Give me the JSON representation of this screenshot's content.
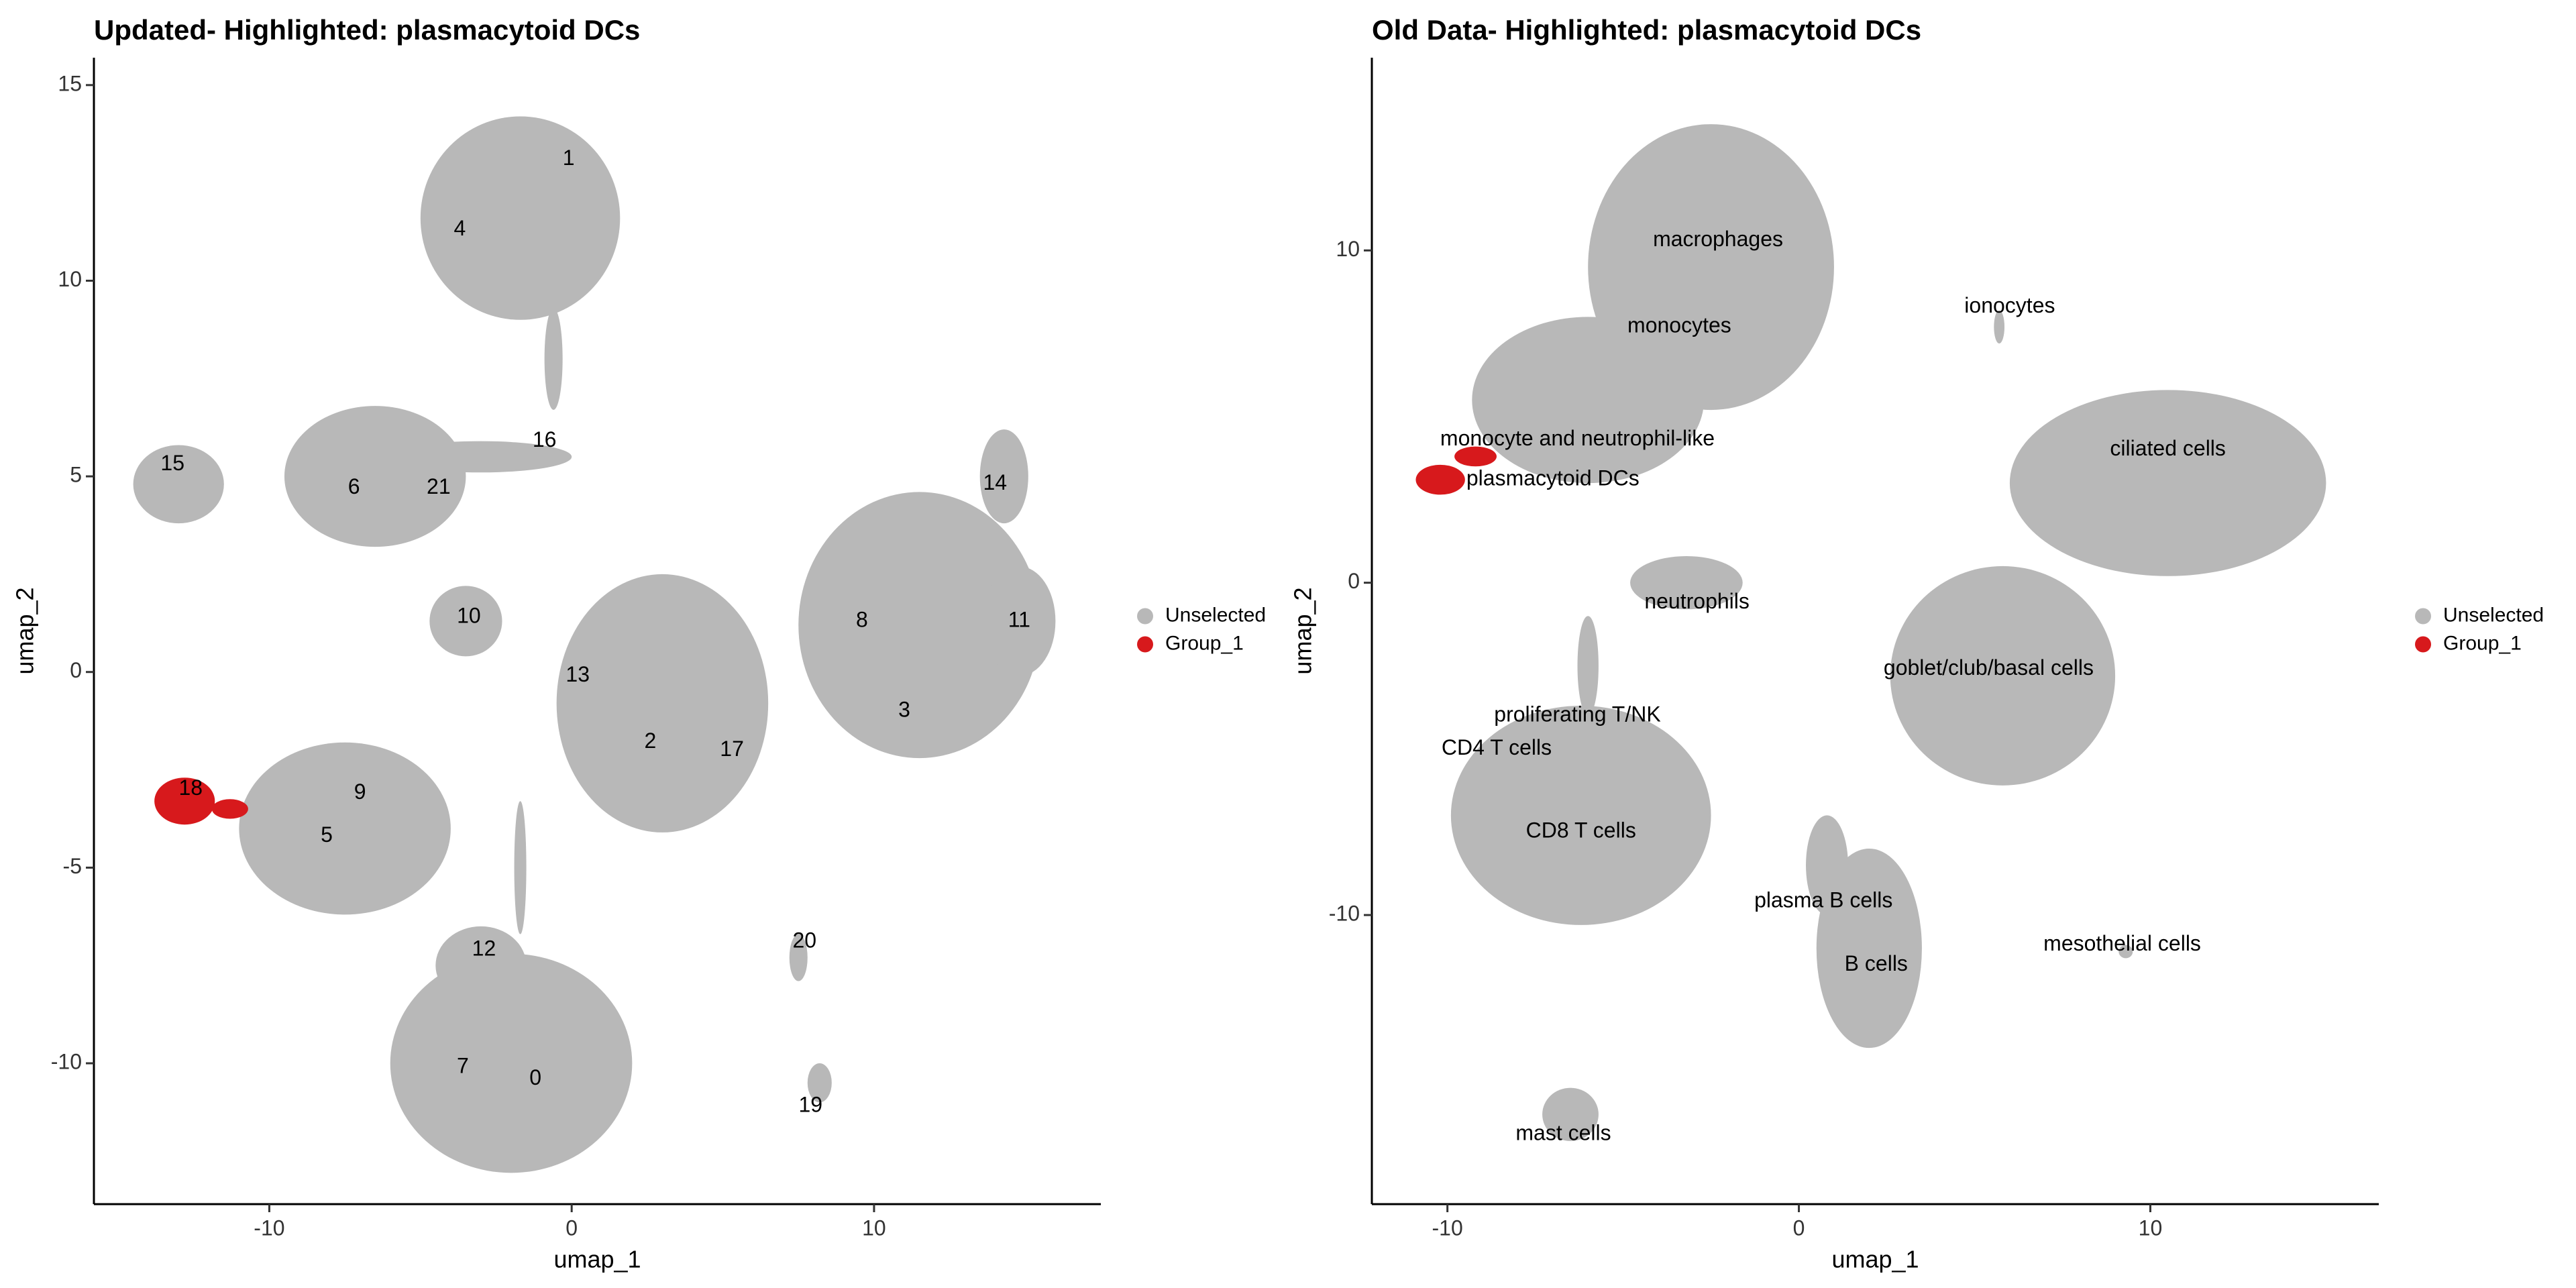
{
  "chart_data": [
    {
      "type": "scatter",
      "title": "Updated- Highlighted: plasmacytoid DCs",
      "xlabel": "umap_1",
      "ylabel": "umap_2",
      "xlim": [
        -15.8,
        17.5
      ],
      "ylim": [
        -13.6,
        15.7
      ],
      "xticks": [
        -10,
        0,
        10
      ],
      "yticks": [
        -10,
        -5,
        0,
        5,
        10,
        15
      ],
      "legend": "right",
      "series": [
        {
          "name": "Unselected",
          "color": "#b8b8b8",
          "regions": {
            "x": [
              -1.7,
              -0.6,
              -6.5,
              -3.0,
              -13.0,
              14.3,
              11.5,
              14.8,
              -3.5,
              3.0,
              -7.5,
              -2.0,
              -3.0,
              -1.7,
              7.5,
              8.2
            ],
            "y": [
              11.6,
              8.0,
              5.0,
              5.5,
              4.8,
              5.0,
              1.2,
              1.3,
              1.3,
              -0.8,
              -4.0,
              -10.0,
              -7.5,
              -5.0,
              -7.3,
              -10.5
            ],
            "rx": [
              3.3,
              0.3,
              3.0,
              3.0,
              1.5,
              0.8,
              4.0,
              1.2,
              1.2,
              3.5,
              3.5,
              4.0,
              1.5,
              0.2,
              0.3,
              0.4
            ],
            "ry": [
              2.6,
              1.3,
              1.8,
              0.4,
              1.0,
              1.2,
              3.4,
              1.4,
              0.9,
              3.3,
              2.2,
              2.8,
              1.0,
              1.7,
              0.6,
              0.5
            ]
          }
        },
        {
          "name": "Group_1",
          "color": "#d7191c",
          "regions": {
            "x": [
              -12.8,
              -11.3
            ],
            "y": [
              -3.3,
              -3.5
            ],
            "rx": [
              1.0,
              0.6
            ],
            "ry": [
              0.6,
              0.25
            ]
          }
        }
      ],
      "annotations": [
        {
          "text": "1",
          "x": -0.1,
          "y": 13.1
        },
        {
          "text": "4",
          "x": -3.7,
          "y": 11.3
        },
        {
          "text": "16",
          "x": -0.9,
          "y": 5.9
        },
        {
          "text": "15",
          "x": -13.2,
          "y": 5.3
        },
        {
          "text": "6",
          "x": -7.2,
          "y": 4.7
        },
        {
          "text": "21",
          "x": -4.4,
          "y": 4.7
        },
        {
          "text": "14",
          "x": 14.0,
          "y": 4.8
        },
        {
          "text": "10",
          "x": -3.4,
          "y": 1.4
        },
        {
          "text": "8",
          "x": 9.6,
          "y": 1.3
        },
        {
          "text": "11",
          "x": 14.8,
          "y": 1.3
        },
        {
          "text": "13",
          "x": 0.2,
          "y": -0.1
        },
        {
          "text": "3",
          "x": 11.0,
          "y": -1.0
        },
        {
          "text": "2",
          "x": 2.6,
          "y": -1.8
        },
        {
          "text": "17",
          "x": 5.3,
          "y": -2.0
        },
        {
          "text": "18",
          "x": -12.6,
          "y": -3.0
        },
        {
          "text": "9",
          "x": -7.0,
          "y": -3.1
        },
        {
          "text": "5",
          "x": -8.1,
          "y": -4.2
        },
        {
          "text": "12",
          "x": -2.9,
          "y": -7.1
        },
        {
          "text": "20",
          "x": 7.7,
          "y": -6.9
        },
        {
          "text": "7",
          "x": -3.6,
          "y": -10.1
        },
        {
          "text": "0",
          "x": -1.2,
          "y": -10.4
        },
        {
          "text": "19",
          "x": 7.9,
          "y": -11.1
        }
      ]
    },
    {
      "type": "scatter",
      "title": "Old Data- Highlighted: plasmacytoid DCs",
      "xlabel": "umap_1",
      "ylabel": "umap_2",
      "xlim": [
        -12.15,
        16.5
      ],
      "ylim": [
        -18.7,
        15.8
      ],
      "xticks": [
        -10,
        0,
        10
      ],
      "yticks": [
        -10,
        0,
        10
      ],
      "legend": "right",
      "series": [
        {
          "name": "Unselected",
          "color": "#b8b8b8",
          "regions": {
            "x": [
              -2.5,
              -6.0,
              5.7,
              10.5,
              -3.2,
              5.8,
              -6.2,
              -6.0,
              2.0,
              0.8,
              9.3,
              -6.5
            ],
            "y": [
              9.5,
              5.5,
              7.7,
              3.0,
              0.0,
              -2.8,
              -7.0,
              -2.5,
              -11.0,
              -8.5,
              -11.1,
              -16.0
            ],
            "rx": [
              3.5,
              3.3,
              0.15,
              4.5,
              1.6,
              3.2,
              3.7,
              0.3,
              1.5,
              0.6,
              0.2,
              0.8
            ],
            "ry": [
              4.3,
              2.5,
              0.5,
              2.8,
              0.8,
              3.3,
              3.3,
              1.5,
              3.0,
              1.5,
              0.2,
              0.8
            ]
          }
        },
        {
          "name": "Group_1",
          "color": "#d7191c",
          "regions": {
            "x": [
              -10.2,
              -9.2
            ],
            "y": [
              3.1,
              3.8
            ],
            "rx": [
              0.7,
              0.6
            ],
            "ry": [
              0.45,
              0.3
            ]
          }
        }
      ],
      "annotations": [
        {
          "text": "macrophages",
          "x": -2.3,
          "y": 10.3
        },
        {
          "text": "ionocytes",
          "x": 6.0,
          "y": 8.3
        },
        {
          "text": "monocytes",
          "x": -3.4,
          "y": 7.7
        },
        {
          "text": "monocyte and neutrophil-like",
          "x": -6.3,
          "y": 4.3
        },
        {
          "text": "plasmacytoid DCs",
          "x": -7.0,
          "y": 3.1
        },
        {
          "text": "ciliated cells",
          "x": 10.5,
          "y": 4.0
        },
        {
          "text": "neutrophils",
          "x": -2.9,
          "y": -0.6
        },
        {
          "text": "goblet/club/basal cells",
          "x": 5.4,
          "y": -2.6
        },
        {
          "text": "proliferating T/NK",
          "x": -6.3,
          "y": -4.0
        },
        {
          "text": "CD4 T cells",
          "x": -8.6,
          "y": -5.0
        },
        {
          "text": "CD8 T cells",
          "x": -6.2,
          "y": -7.5
        },
        {
          "text": "plasma B cells",
          "x": 0.7,
          "y": -9.6
        },
        {
          "text": "mesothelial cells",
          "x": 9.2,
          "y": -10.9
        },
        {
          "text": "B cells",
          "x": 2.2,
          "y": -11.5
        },
        {
          "text": "mast cells",
          "x": -6.7,
          "y": -16.6
        }
      ]
    }
  ]
}
